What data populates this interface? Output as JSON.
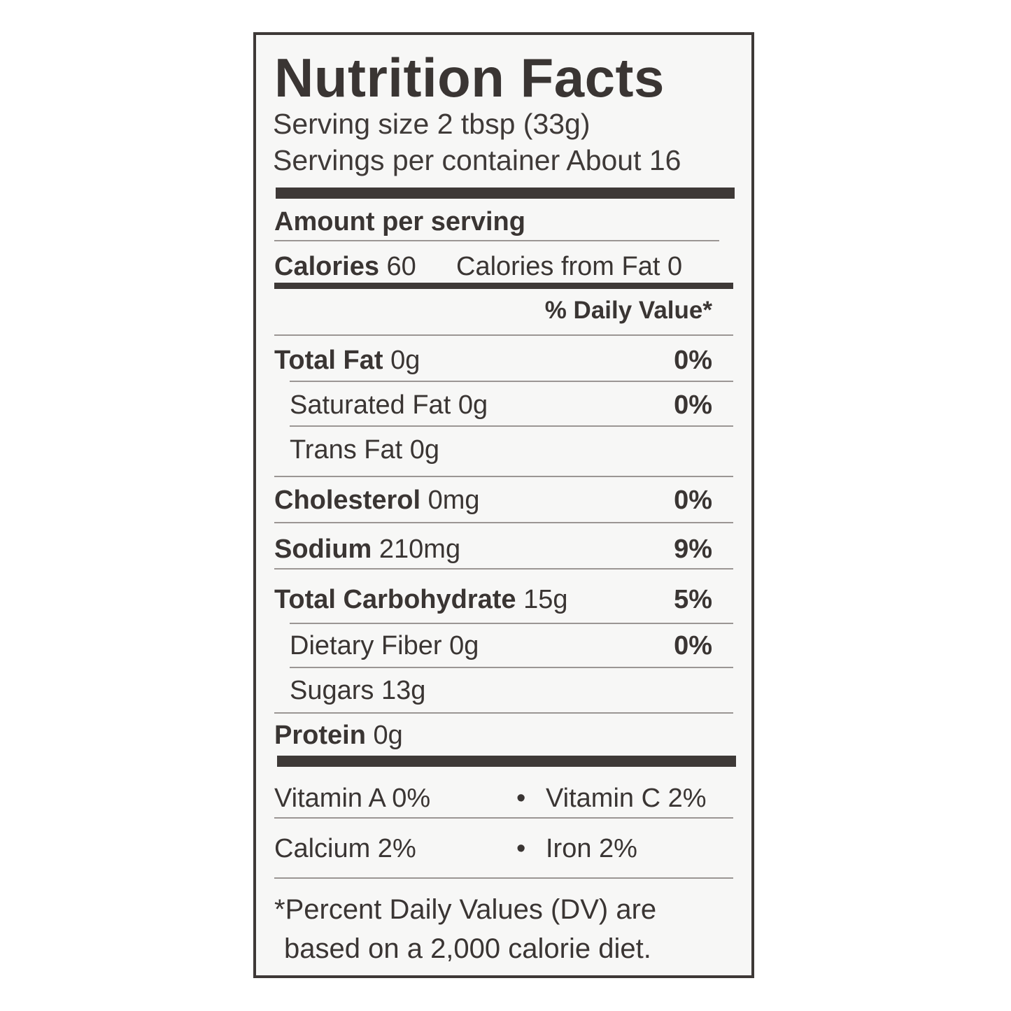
{
  "title": "Nutrition Facts",
  "serving_size": "Serving size 2 tbsp (33g)",
  "servings_per_container": "Servings per container About 16",
  "amount_per_serving": "Amount per serving",
  "calories": {
    "label": "Calories",
    "value": "60",
    "from_fat": "Calories from Fat 0"
  },
  "daily_value_header": "% Daily Value*",
  "nutrients": [
    {
      "name": "Total Fat",
      "amount": "0g",
      "dv": "0%"
    },
    {
      "name": "Saturated Fat",
      "amount": "0g",
      "dv": "0%"
    },
    {
      "name": "Trans Fat",
      "amount": "0g",
      "dv": ""
    },
    {
      "name": "Cholesterol",
      "amount": "0mg",
      "dv": "0%"
    },
    {
      "name": "Sodium",
      "amount": "210mg",
      "dv": "9%"
    },
    {
      "name": "Total Carbohydrate",
      "amount": "15g",
      "dv": "5%"
    },
    {
      "name": "Dietary Fiber",
      "amount": "0g",
      "dv": "0%"
    },
    {
      "name": "Sugars",
      "amount": "13g",
      "dv": ""
    },
    {
      "name": "Protein",
      "amount": "0g",
      "dv": ""
    }
  ],
  "vitamins": {
    "row1_left": "Vitamin A 0%",
    "row1_right": "Vitamin C 2%",
    "row2_left": "Calcium 2%",
    "row2_right": "Iron 2%",
    "separator": "•"
  },
  "footnote": {
    "line1": "*Percent Daily Values (DV) are",
    "line2": "based on a 2,000 calorie diet."
  }
}
